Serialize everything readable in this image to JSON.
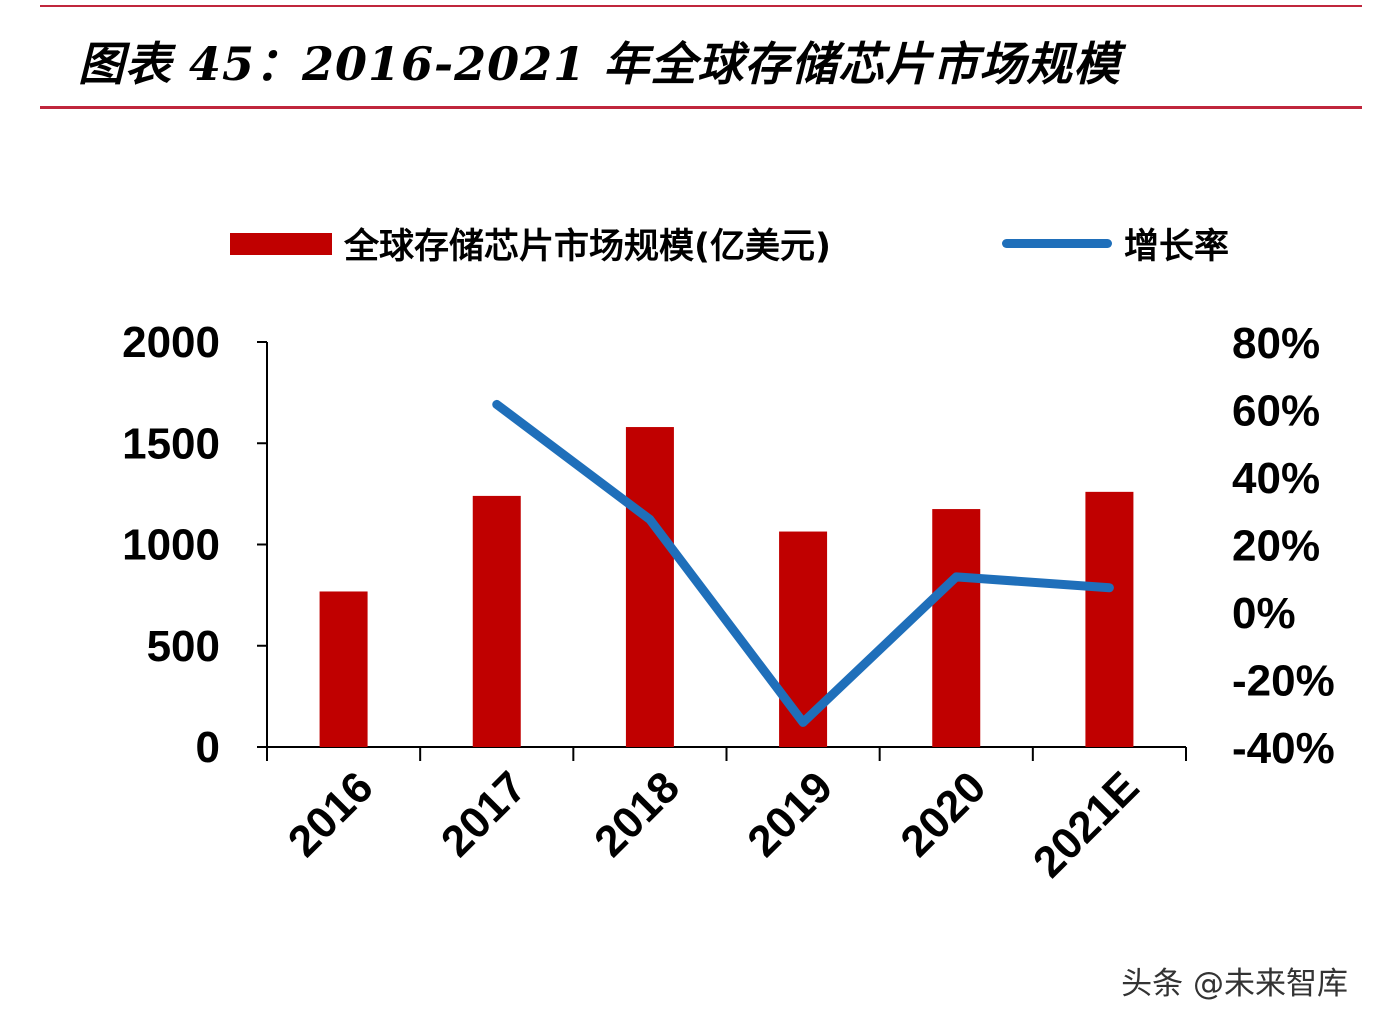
{
  "title": "图表 45：2016-2021 年全球存储芯片市场规模",
  "watermark": "头条 @未来智库",
  "colors": {
    "bar": "#c00000",
    "line": "#1f6fba",
    "rule": "#c0263c",
    "axis": "#000000"
  },
  "chart_data": {
    "type": "bar",
    "categories": [
      "2016",
      "2017",
      "2018",
      "2019",
      "2020",
      "2021E"
    ],
    "series": [
      {
        "name": "全球存储芯片市场规模(亿美元)",
        "type": "bar",
        "axis": "left",
        "values": [
          768,
          1240,
          1580,
          1064,
          1175,
          1260
        ]
      },
      {
        "name": "增长率",
        "type": "line",
        "axis": "right",
        "values": [
          null,
          0.615,
          0.274,
          -0.327,
          0.104,
          0.072
        ]
      }
    ],
    "y_left": {
      "ylim": [
        0,
        2000
      ],
      "ticks": [
        0,
        500,
        1000,
        1500,
        2000
      ],
      "tick_labels": [
        "0",
        "500",
        "1000",
        "1500",
        "2000"
      ]
    },
    "y_right": {
      "ylim": [
        -0.4,
        0.8
      ],
      "ticks": [
        -0.4,
        -0.2,
        0,
        0.2,
        0.4,
        0.6,
        0.8
      ],
      "tick_labels": [
        "-40%",
        "-20%",
        "0%",
        "20%",
        "40%",
        "60%",
        "80%"
      ]
    },
    "xlabel": "",
    "ylabel": "",
    "legend": "top-center",
    "grid": false
  }
}
